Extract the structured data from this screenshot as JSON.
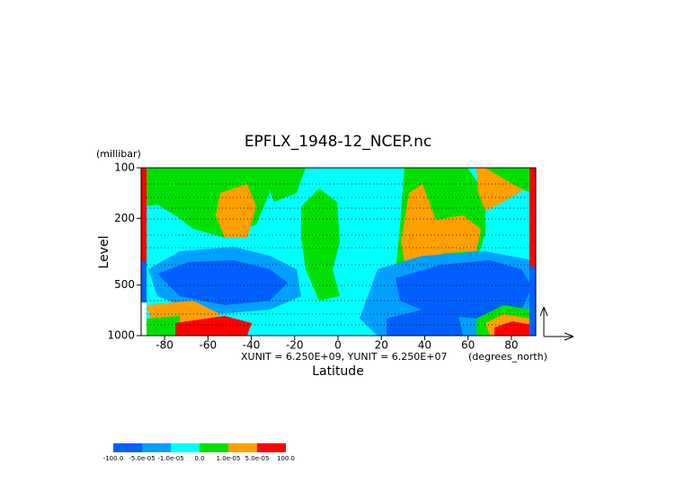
{
  "chart_data": {
    "type": "contour",
    "title": "EPFLX_1948-12_NCEP.nc",
    "x_label": "Latitude",
    "y_label": "Level",
    "y_unit": "(millibar)",
    "x_unit": "(degrees_north)",
    "annotation": "XUNIT = 6.250E+09, YUNIT = 6.250E+07",
    "xlim": [
      -90,
      90
    ],
    "xticks": [
      -80,
      -60,
      -40,
      -20,
      0,
      20,
      40,
      60,
      80
    ],
    "ylim": [
      1000,
      100
    ],
    "yticks": [
      100,
      200,
      500,
      1000
    ],
    "y_log_scale": true,
    "colorbar": {
      "levels": [
        {
          "value": -100,
          "label": "-100.0"
        },
        {
          "value": -5e-05,
          "label": "-5.0e-05"
        },
        {
          "value": -1e-05,
          "label": "-1.0e-05"
        },
        {
          "value": 0,
          "label": "0.0"
        },
        {
          "value": 1e-05,
          "label": "1.0e-05"
        },
        {
          "value": 5e-05,
          "label": "5.0e-05"
        },
        {
          "value": 100,
          "label": "100.0"
        }
      ],
      "colors": [
        "#0060ff",
        "#00a0ff",
        "#00ffff",
        "#00e000",
        "#ffa000",
        "#ff0000"
      ]
    }
  }
}
